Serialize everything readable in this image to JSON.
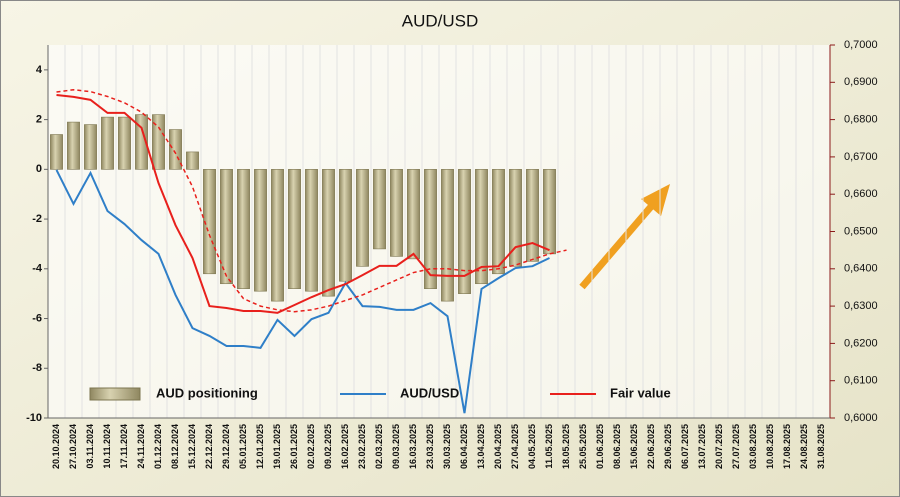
{
  "chart_data": {
    "type": "bar_line",
    "title": "AUD/USD",
    "categories": [
      "20.10.2024",
      "27.10.2024",
      "03.11.2024",
      "10.11.2024",
      "17.11.2024",
      "24.11.2024",
      "01.12.2024",
      "08.12.2024",
      "15.12.2024",
      "22.12.2024",
      "29.12.2024",
      "05.01.2025",
      "12.01.2025",
      "19.01.2025",
      "26.01.2025",
      "02.02.2025",
      "09.02.2025",
      "16.02.2025",
      "23.02.2025",
      "02.03.2025",
      "09.03.2025",
      "16.03.2025",
      "23.03.2025",
      "30.03.2025",
      "06.04.2025",
      "13.04.2025",
      "20.04.2025",
      "27.04.2025",
      "04.05.2025",
      "11.05.2025",
      "18.05.2025",
      "25.05.2025",
      "01.06.2025",
      "08.06.2025",
      "15.06.2025",
      "22.06.2025",
      "29.06.2025",
      "06.07.2025",
      "13.07.2025",
      "20.07.2025",
      "27.07.2025",
      "03.08.2025",
      "10.08.2025",
      "17.08.2025",
      "24.08.2025",
      "31.08.2025"
    ],
    "series": [
      {
        "name": "AUD positioning",
        "type": "bar",
        "axis": "y",
        "color": "#c9c29c",
        "values": [
          1.4,
          1.9,
          1.8,
          2.1,
          2.1,
          2.2,
          2.2,
          1.6,
          0.7,
          -4.2,
          -4.6,
          -4.8,
          -4.9,
          -5.3,
          -4.8,
          -4.9,
          -5.1,
          -4.5,
          -3.9,
          -3.2,
          -3.5,
          -3.6,
          -4.8,
          -5.3,
          -5.0,
          -4.6,
          -4.2,
          -3.9,
          -3.7,
          -3.4,
          null,
          null,
          null,
          null,
          null,
          null,
          null,
          null,
          null,
          null,
          null,
          null,
          null,
          null,
          null,
          null
        ]
      },
      {
        "name": "AUD/USD",
        "type": "line",
        "axis": "y2",
        "color": "#2f7fc8",
        "values": [
          0.6665,
          0.6574,
          0.6657,
          0.6555,
          0.652,
          0.6477,
          0.644,
          0.633,
          0.6241,
          0.622,
          0.6193,
          0.6193,
          0.6188,
          0.6263,
          0.622,
          0.6265,
          0.6282,
          0.6362,
          0.63,
          0.6298,
          0.629,
          0.629,
          0.6308,
          0.6273,
          0.6013,
          0.6346,
          0.6375,
          0.6402,
          0.6407,
          0.6429,
          null,
          null,
          null,
          null,
          null,
          null,
          null,
          null,
          null,
          null,
          null,
          null,
          null,
          null,
          null,
          null
        ]
      },
      {
        "name": "Fair value",
        "type": "line",
        "axis": "y2",
        "color": "#e8201c",
        "values": [
          0.6866,
          0.6861,
          0.6853,
          0.6818,
          0.6818,
          0.6778,
          0.663,
          0.6517,
          0.6429,
          0.63,
          0.6295,
          0.6287,
          0.6287,
          0.6282,
          0.6303,
          0.6324,
          0.6343,
          0.6359,
          0.6383,
          0.6408,
          0.6408,
          0.644,
          0.6383,
          0.6381,
          0.6381,
          0.6405,
          0.6407,
          0.6458,
          0.6469,
          0.645,
          null,
          null,
          null,
          null,
          null,
          null,
          null,
          null,
          null,
          null,
          null,
          null,
          null,
          null,
          null,
          null
        ]
      },
      {
        "type": "line",
        "axis": "y2",
        "color": "#e8201c",
        "dashed": true,
        "values": [
          0.6874,
          0.688,
          0.6875,
          0.6862,
          0.6845,
          0.682,
          0.678,
          0.671,
          0.662,
          0.649,
          0.638,
          0.632,
          0.63,
          0.629,
          0.6285,
          0.629,
          0.63,
          0.6315,
          0.633,
          0.635,
          0.637,
          0.639,
          0.64,
          0.64,
          0.6395,
          0.6395,
          0.64,
          0.641,
          0.6425,
          0.644,
          0.645,
          null,
          null,
          null,
          null,
          null,
          null,
          null,
          null,
          null,
          null,
          null,
          null,
          null,
          null,
          null
        ]
      }
    ],
    "ylim": [
      -10,
      5
    ],
    "yticks": [
      -10,
      -8,
      -6,
      -4,
      -2,
      0,
      2,
      4
    ],
    "y2lim": [
      0.6,
      0.7
    ],
    "y2ticks": [
      {
        "value": 0.6,
        "label": "0,6000"
      },
      {
        "value": 0.61,
        "label": "0,6100"
      },
      {
        "value": 0.62,
        "label": "0,6200"
      },
      {
        "value": 0.63,
        "label": "0,6300"
      },
      {
        "value": 0.64,
        "label": "0,6400"
      },
      {
        "value": 0.65,
        "label": "0,6500"
      },
      {
        "value": 0.66,
        "label": "0,6600"
      },
      {
        "value": 0.67,
        "label": "0,6700"
      },
      {
        "value": 0.68,
        "label": "0,6800"
      },
      {
        "value": 0.69,
        "label": "0,6900"
      },
      {
        "value": 0.7,
        "label": "0,7000"
      }
    ],
    "grid": true
  }
}
